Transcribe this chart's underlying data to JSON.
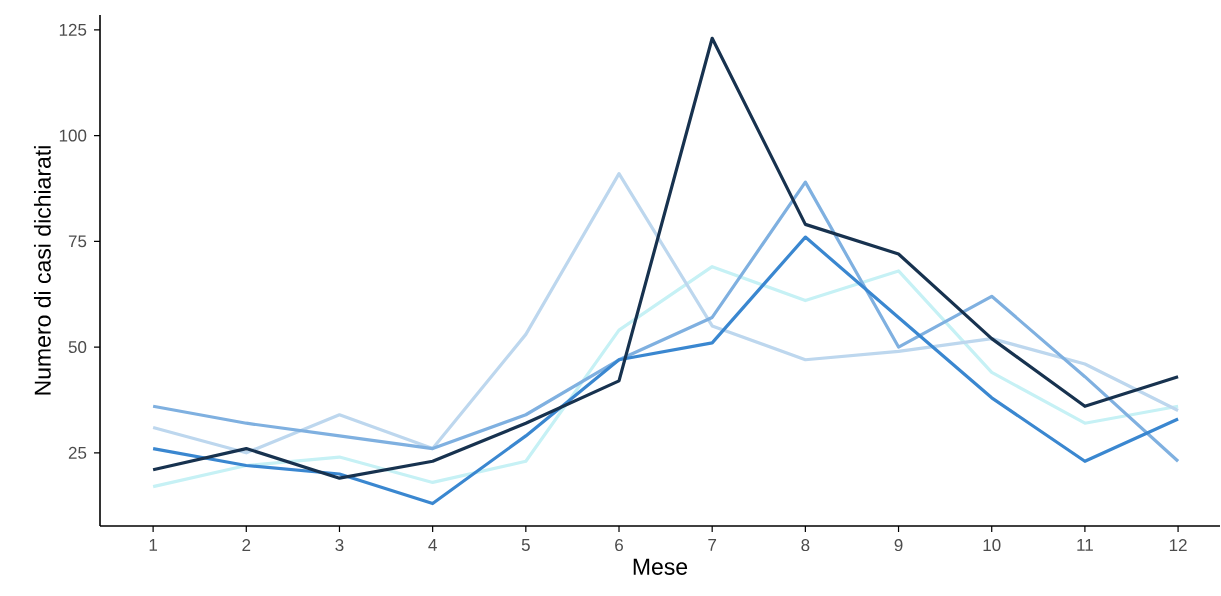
{
  "chart_data": {
    "type": "line",
    "xlabel": "Mese",
    "ylabel": "Numero di casi dichiarati",
    "x": [
      1,
      2,
      3,
      4,
      5,
      6,
      7,
      8,
      9,
      10,
      11,
      12
    ],
    "series": [
      {
        "color": "#c6f1f5",
        "values": [
          17,
          22,
          24,
          18,
          23,
          54,
          69,
          61,
          68,
          44,
          32,
          36
        ]
      },
      {
        "color": "#bdd7ee",
        "values": [
          31,
          25,
          34,
          26,
          53,
          91,
          55,
          47,
          49,
          52,
          46,
          35
        ]
      },
      {
        "color": "#7fb0e0",
        "values": [
          36,
          32,
          29,
          26,
          34,
          47,
          57,
          89,
          50,
          62,
          43,
          23
        ]
      },
      {
        "color": "#3a87d0",
        "values": [
          26,
          22,
          20,
          13,
          29,
          47,
          51,
          76,
          57,
          38,
          23,
          33
        ]
      },
      {
        "color": "#17324f",
        "values": [
          21,
          26,
          19,
          23,
          32,
          42,
          123,
          79,
          72,
          52,
          36,
          43
        ]
      }
    ],
    "xlim": [
      0.43,
      12.45
    ],
    "ylim": [
      7.7,
      128.5
    ],
    "xticks": [
      1,
      2,
      3,
      4,
      5,
      6,
      7,
      8,
      9,
      10,
      11,
      12
    ],
    "yticks": [
      25,
      50,
      75,
      100,
      125
    ],
    "grid": false,
    "marker": "none",
    "line_style": "solid"
  }
}
